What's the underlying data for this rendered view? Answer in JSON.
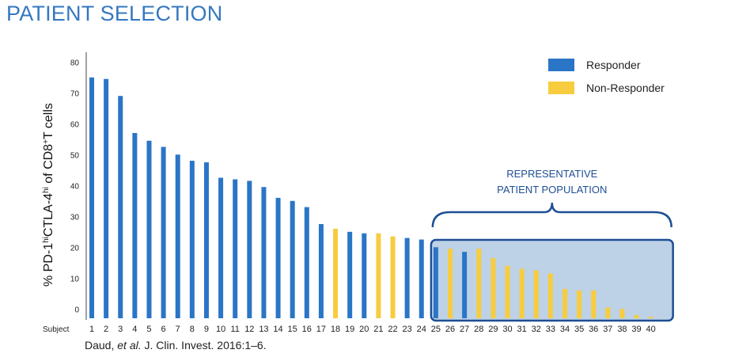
{
  "page": {
    "title": "PATIENT SELECTION",
    "citation": {
      "before": "Daud, ",
      "italic": "et al.",
      "after": " J. Clin. Invest. 2016:1–6."
    }
  },
  "chart_data": {
    "type": "bar",
    "ylabel": {
      "parts": [
        {
          "text": "% PD-1",
          "sup": false
        },
        {
          "text": "hi",
          "sup": true
        },
        {
          "text": "CTLA-4",
          "sup": false
        },
        {
          "text": "hi",
          "sup": true
        },
        {
          "text": " of CD8",
          "sup": false
        },
        {
          "text": "+",
          "sup": true
        },
        {
          "text": "T cells",
          "sup": false
        }
      ]
    },
    "xlabel": "Subject",
    "ylim": [
      0,
      85
    ],
    "yticks": [
      0,
      10,
      20,
      30,
      40,
      50,
      60,
      70,
      80
    ],
    "categories": [
      "1",
      "2",
      "3",
      "4",
      "5",
      "6",
      "7",
      "8",
      "9",
      "10",
      "11",
      "12",
      "13",
      "14",
      "15",
      "16",
      "17",
      "18",
      "19",
      "20",
      "21",
      "22",
      "23",
      "24",
      "25",
      "26",
      "27",
      "28",
      "29",
      "30",
      "31",
      "32",
      "33",
      "34",
      "35",
      "36",
      "37",
      "38",
      "39",
      "40"
    ],
    "values": [
      78,
      77.5,
      72,
      60,
      57.5,
      55.5,
      53,
      51,
      50.5,
      45.5,
      45,
      44.5,
      42.5,
      39,
      38,
      36,
      30.5,
      29,
      28,
      27.5,
      27.5,
      26.5,
      26,
      25.5,
      23,
      22.5,
      21.5,
      22.5,
      19.5,
      17,
      16,
      15.5,
      14.5,
      9.5,
      9,
      9,
      3.5,
      3,
      1,
      0.5
    ],
    "groups": [
      "Responder",
      "Responder",
      "Responder",
      "Responder",
      "Responder",
      "Responder",
      "Responder",
      "Responder",
      "Responder",
      "Responder",
      "Responder",
      "Responder",
      "Responder",
      "Responder",
      "Responder",
      "Responder",
      "Responder",
      "Non-Responder",
      "Responder",
      "Responder",
      "Non-Responder",
      "Non-Responder",
      "Responder",
      "Responder",
      "Responder",
      "Non-Responder",
      "Responder",
      "Non-Responder",
      "Non-Responder",
      "Non-Responder",
      "Non-Responder",
      "Non-Responder",
      "Non-Responder",
      "Non-Responder",
      "Non-Responder",
      "Non-Responder",
      "Non-Responder",
      "Non-Responder",
      "Non-Responder",
      "Non-Responder"
    ],
    "legend": {
      "placement": "top-right",
      "entries": [
        {
          "label": "Responder",
          "color": "#2a75c6"
        },
        {
          "label": "Non-Responder",
          "color": "#f7cc3e"
        }
      ]
    },
    "annotation": {
      "lines": [
        "REPRESENTATIVE",
        "PATIENT POPULATION"
      ],
      "from_subject": "25",
      "to_subject": "40",
      "border_color": "#1f4f93",
      "fill_color": "#bdd2e6",
      "text_color": "#1f4f93"
    },
    "grid": false
  }
}
